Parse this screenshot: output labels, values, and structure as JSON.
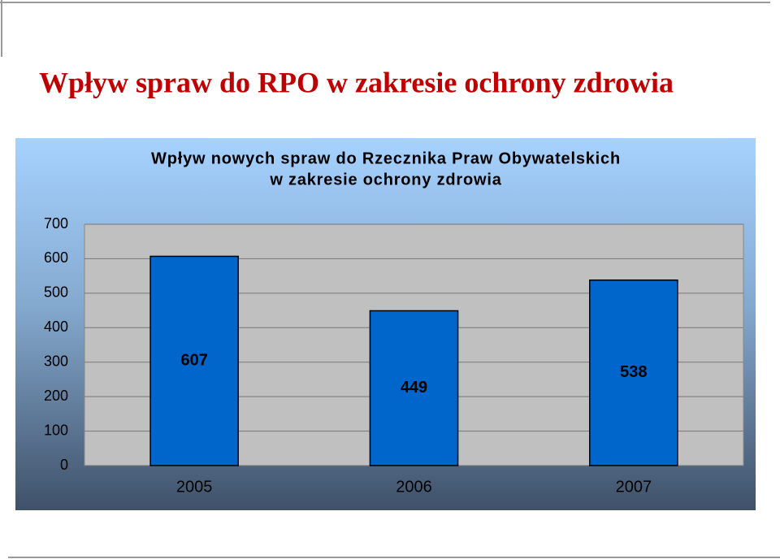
{
  "heading": "Wpływ spraw do RPO w zakresie ochrony zdrowia",
  "chart_data": {
    "type": "bar",
    "title": [
      "Wpływ nowych spraw do Rzecznika Praw Obywatelskich",
      "w zakresie ochrony zdrowia"
    ],
    "categories": [
      "2005",
      "2006",
      "2007"
    ],
    "values": [
      607,
      449,
      538
    ],
    "color": "#0066cc",
    "ylim": [
      0,
      700
    ],
    "yticks": [
      0,
      100,
      200,
      300,
      400,
      500,
      600,
      700
    ],
    "grid": true
  }
}
